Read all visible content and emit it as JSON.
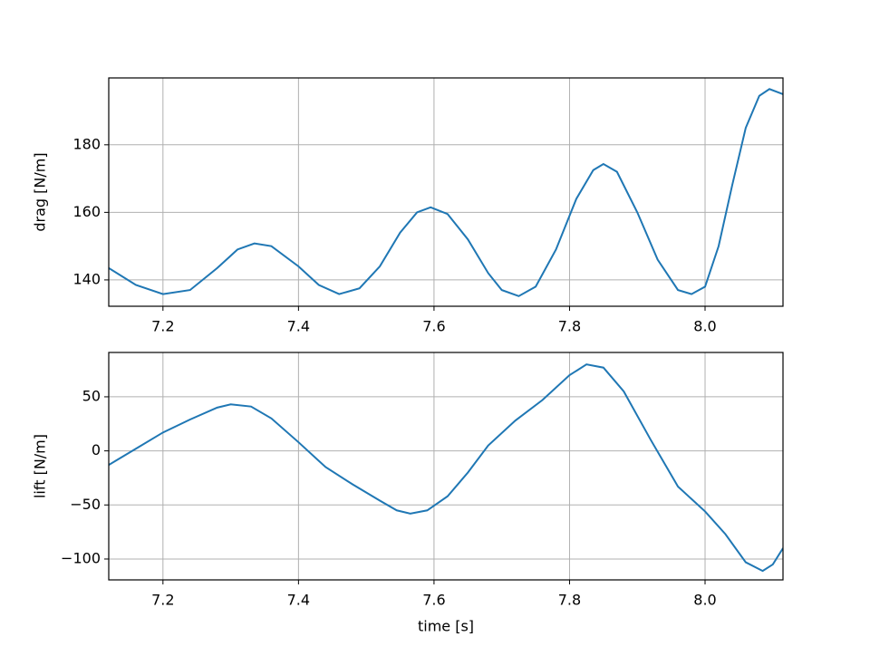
{
  "chart_data": [
    {
      "type": "line",
      "ylabel": "drag [N/m]",
      "grid": true,
      "x": [
        7.12,
        7.16,
        7.2,
        7.24,
        7.28,
        7.31,
        7.335,
        7.36,
        7.4,
        7.43,
        7.46,
        7.49,
        7.52,
        7.55,
        7.575,
        7.595,
        7.62,
        7.65,
        7.68,
        7.7,
        7.725,
        7.75,
        7.78,
        7.81,
        7.835,
        7.85,
        7.87,
        7.9,
        7.93,
        7.96,
        7.98,
        8.0,
        8.02,
        8.04,
        8.06,
        8.08,
        8.095,
        8.115
      ],
      "series": [
        {
          "color": "#1f77b4",
          "values": [
            143.5,
            138.5,
            135.8,
            137,
            143.5,
            149,
            150.8,
            150,
            144,
            138.5,
            135.8,
            137.5,
            144,
            154,
            160,
            161.5,
            159.5,
            152,
            142,
            137,
            135.2,
            138,
            149,
            164,
            172.5,
            174.3,
            172,
            160,
            146,
            137,
            135.8,
            138,
            150,
            168,
            185,
            194.5,
            196.5,
            195
          ]
        }
      ],
      "xlim": [
        7.12,
        8.115
      ],
      "xticks": [
        7.2,
        7.4,
        7.6,
        7.8,
        {
          "value": 8,
          "label": "8.0"
        }
      ],
      "ylim": [
        132.2,
        199.8
      ],
      "yticks": [
        140,
        160,
        180
      ]
    },
    {
      "type": "line",
      "ylabel": "lift [N/m]",
      "xlabel": "time [s]",
      "grid": true,
      "x": [
        7.12,
        7.16,
        7.2,
        7.24,
        7.28,
        7.3,
        7.33,
        7.36,
        7.4,
        7.44,
        7.48,
        7.52,
        7.545,
        7.565,
        7.59,
        7.62,
        7.65,
        7.68,
        7.72,
        7.76,
        7.8,
        7.825,
        7.85,
        7.88,
        7.92,
        7.96,
        8.0,
        8.03,
        8.06,
        8.085,
        8.1,
        8.115
      ],
      "series": [
        {
          "color": "#1f77b4",
          "values": [
            -13,
            2,
            17,
            29,
            40,
            43,
            41,
            30,
            8,
            -15,
            -31,
            -46,
            -55,
            -58,
            -55,
            -42,
            -20,
            5,
            28,
            47,
            70,
            80,
            77,
            55,
            10,
            -33,
            -56,
            -77,
            -103,
            -111,
            -105,
            -90
          ]
        }
      ],
      "xlim": [
        7.12,
        8.115
      ],
      "xticks": [
        7.2,
        7.4,
        7.6,
        7.8,
        {
          "value": 8,
          "label": "8.0"
        }
      ],
      "ylim": [
        -119.3,
        91
      ],
      "yticks": [
        {
          "value": -100,
          "label": "−100"
        },
        {
          "value": -50,
          "label": "−50"
        },
        0,
        50
      ]
    }
  ]
}
